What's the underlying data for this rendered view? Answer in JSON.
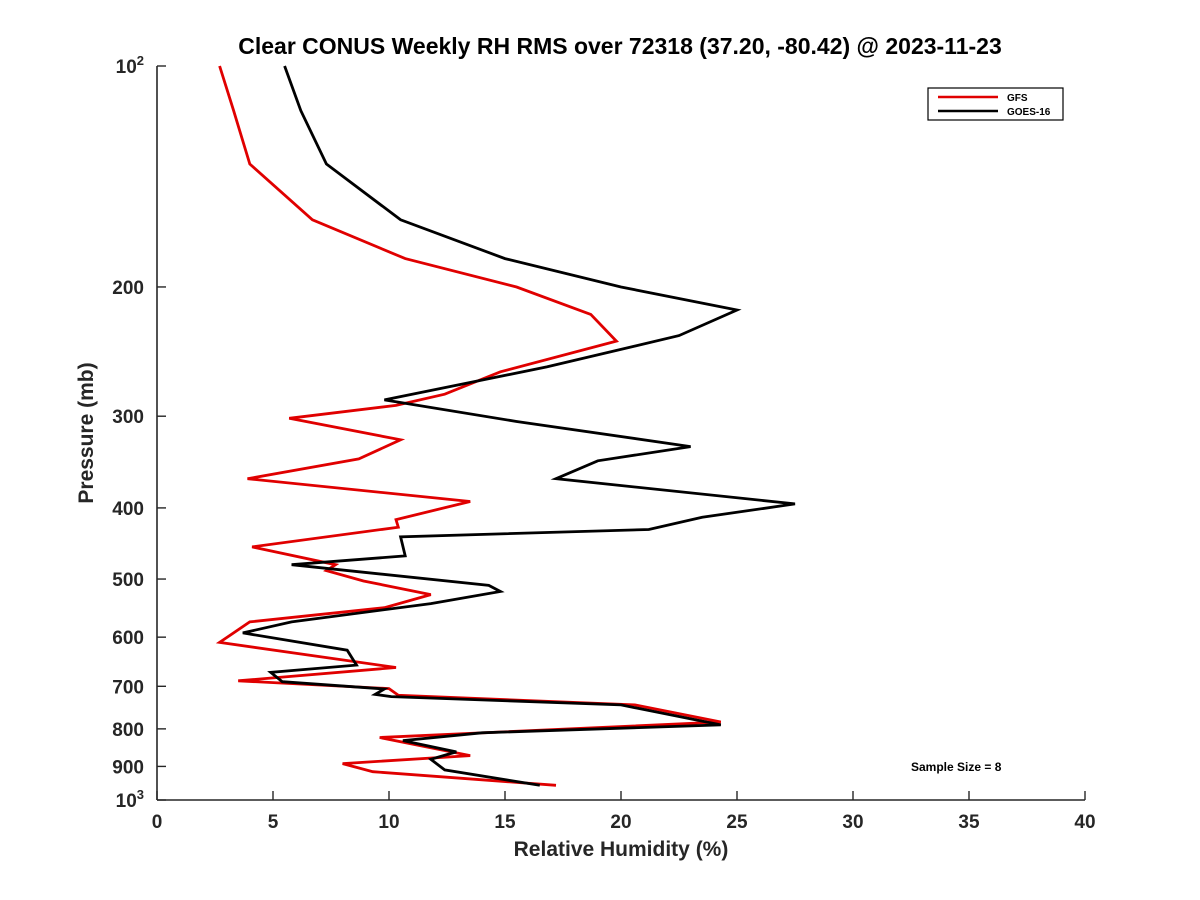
{
  "chart_data": {
    "type": "line",
    "title": "Clear CONUS Weekly RH RMS over 72318 (37.20, -80.42) @ 2023-11-23",
    "xlabel": "Relative Humidity (%)",
    "ylabel": "Pressure (mb)",
    "xlim": [
      0,
      40
    ],
    "ylim": [
      100,
      1000
    ],
    "y_scale": "log",
    "y_reversed": true,
    "x_ticks": [
      "0",
      "5",
      "10",
      "15",
      "20",
      "25",
      "30",
      "35",
      "40"
    ],
    "y_ticks": [
      {
        "value": 200,
        "label": "200"
      },
      {
        "value": 300,
        "label": "300"
      },
      {
        "value": 400,
        "label": "400"
      },
      {
        "value": 500,
        "label": "500"
      },
      {
        "value": 600,
        "label": "600"
      },
      {
        "value": 700,
        "label": "700"
      },
      {
        "value": 800,
        "label": "800"
      },
      {
        "value": 900,
        "label": "900"
      }
    ],
    "y_tick_top": {
      "value": 100,
      "base": "10",
      "exp": "2"
    },
    "y_tick_bottom": {
      "value": 1000,
      "base": "10",
      "exp": "3"
    },
    "grid": false,
    "legend_position": "top-right",
    "annotation": "Sample Size = 8",
    "series": [
      {
        "name": "GFS",
        "color": "#e00000",
        "points": [
          [
            2.7,
            100
          ],
          [
            3.3,
            115
          ],
          [
            4.0,
            136
          ],
          [
            6.7,
            162
          ],
          [
            10.7,
            183
          ],
          [
            15.5,
            200
          ],
          [
            18.7,
            218
          ],
          [
            19.8,
            237
          ],
          [
            14.8,
            261
          ],
          [
            12.4,
            280
          ],
          [
            10.3,
            290
          ],
          [
            5.7,
            302
          ],
          [
            10.5,
            323
          ],
          [
            8.7,
            343
          ],
          [
            3.9,
            365
          ],
          [
            13.5,
            392
          ],
          [
            10.3,
            415
          ],
          [
            10.4,
            425
          ],
          [
            4.1,
            452
          ],
          [
            7.7,
            478
          ],
          [
            7.3,
            487
          ],
          [
            8.9,
            503
          ],
          [
            11.8,
            525
          ],
          [
            9.8,
            547
          ],
          [
            4.0,
            572
          ],
          [
            2.7,
            610
          ],
          [
            10.3,
            660
          ],
          [
            3.5,
            688
          ],
          [
            10.0,
            705
          ],
          [
            10.4,
            720
          ],
          [
            20.6,
            742
          ],
          [
            24.3,
            783
          ],
          [
            9.6,
            822
          ],
          [
            13.5,
            870
          ],
          [
            8.0,
            892
          ],
          [
            9.3,
            915
          ],
          [
            17.2,
            955
          ]
        ]
      },
      {
        "name": "GOES-16",
        "color": "#000000",
        "points": [
          [
            5.5,
            100
          ],
          [
            6.2,
            115
          ],
          [
            7.3,
            136
          ],
          [
            10.5,
            162
          ],
          [
            15.0,
            183
          ],
          [
            20.0,
            200
          ],
          [
            25.0,
            215
          ],
          [
            22.5,
            233
          ],
          [
            16.8,
            257
          ],
          [
            9.8,
            285
          ],
          [
            15.5,
            305
          ],
          [
            23.0,
            330
          ],
          [
            19.0,
            345
          ],
          [
            17.2,
            365
          ],
          [
            27.5,
            395
          ],
          [
            23.5,
            412
          ],
          [
            21.2,
            428
          ],
          [
            10.5,
            438
          ],
          [
            10.7,
            465
          ],
          [
            5.8,
            478
          ],
          [
            14.3,
            510
          ],
          [
            14.8,
            520
          ],
          [
            11.8,
            540
          ],
          [
            5.8,
            572
          ],
          [
            3.7,
            592
          ],
          [
            8.2,
            625
          ],
          [
            8.6,
            655
          ],
          [
            4.9,
            670
          ],
          [
            5.4,
            690
          ],
          [
            9.8,
            706
          ],
          [
            9.4,
            718
          ],
          [
            10.1,
            723
          ],
          [
            20.0,
            742
          ],
          [
            24.3,
            790
          ],
          [
            14.0,
            810
          ],
          [
            10.6,
            830
          ],
          [
            12.9,
            860
          ],
          [
            11.8,
            880
          ],
          [
            12.4,
            910
          ],
          [
            16.5,
            955
          ]
        ]
      }
    ]
  }
}
